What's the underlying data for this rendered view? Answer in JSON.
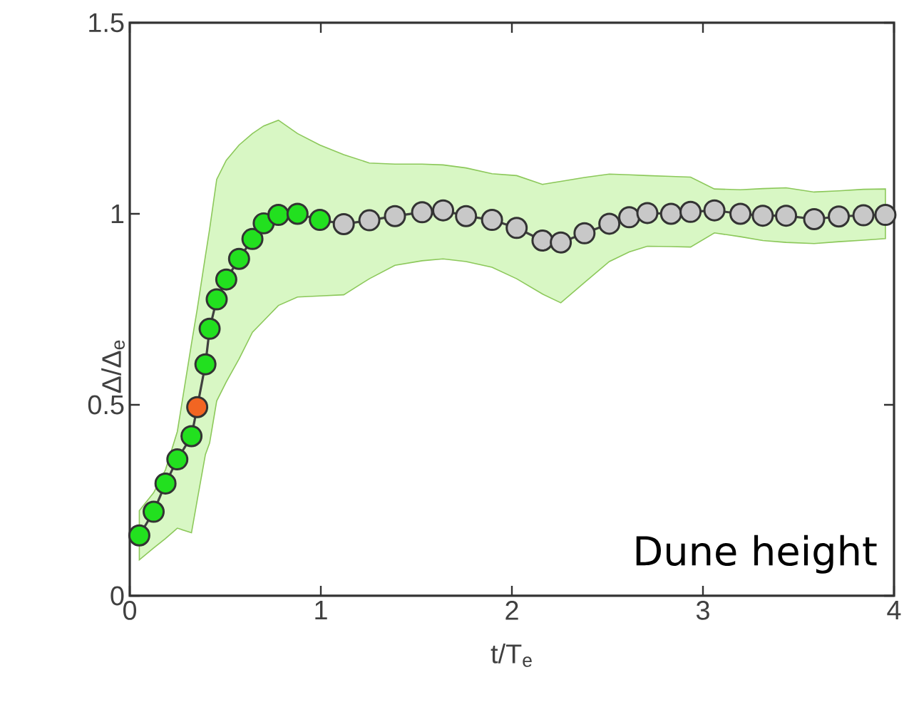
{
  "chart_data": {
    "type": "line",
    "xlabel": "t/T$_{e}$",
    "ylabel": "Δ/Δ$_{e}$",
    "xlim": [
      0,
      4
    ],
    "ylim": [
      0,
      1.5
    ],
    "xticks": [
      0,
      1,
      2,
      3,
      4
    ],
    "yticks": [
      0,
      0.5,
      1,
      1.5
    ],
    "marker": "circle",
    "line_style": "solid",
    "annotations": [
      "Dune height"
    ],
    "series": [
      {
        "color": "#404040",
        "x": [
          0.05,
          0.125,
          0.187,
          0.249,
          0.323,
          0.353,
          0.396,
          0.418,
          0.455,
          0.505,
          0.572,
          0.642,
          0.701,
          0.778,
          0.878,
          0.995,
          1.12,
          1.254,
          1.388,
          1.53,
          1.64,
          1.76,
          1.896,
          2.025,
          2.16,
          2.256,
          2.38,
          2.51,
          2.614,
          2.709,
          2.833,
          2.935,
          3.06,
          3.196,
          3.313,
          3.435,
          3.582,
          3.711,
          3.84,
          3.955
        ],
        "values": [
          0.158,
          0.22,
          0.294,
          0.357,
          0.418,
          0.494,
          0.606,
          0.699,
          0.776,
          0.828,
          0.882,
          0.934,
          0.975,
          0.997,
          1.0,
          0.984,
          0.973,
          0.983,
          0.994,
          1.004,
          1.009,
          0.994,
          0.984,
          0.963,
          0.93,
          0.925,
          0.949,
          0.974,
          0.991,
          1.002,
          1.0,
          1.005,
          1.009,
          1.0,
          0.995,
          0.995,
          0.986,
          0.993,
          0.996,
          0.997
        ],
        "upper": [
          0.223,
          0.27,
          0.33,
          0.43,
          0.66,
          0.75,
          0.89,
          0.96,
          1.09,
          1.14,
          1.18,
          1.21,
          1.23,
          1.245,
          1.21,
          1.18,
          1.155,
          1.133,
          1.13,
          1.13,
          1.128,
          1.12,
          1.105,
          1.1,
          1.077,
          1.085,
          1.095,
          1.104,
          1.102,
          1.1,
          1.098,
          1.096,
          1.065,
          1.063,
          1.066,
          1.068,
          1.057,
          1.06,
          1.064,
          1.065
        ],
        "lower": [
          0.094,
          0.125,
          0.15,
          0.177,
          0.165,
          0.25,
          0.37,
          0.4,
          0.51,
          0.56,
          0.62,
          0.69,
          0.72,
          0.76,
          0.782,
          0.785,
          0.788,
          0.83,
          0.865,
          0.877,
          0.882,
          0.875,
          0.86,
          0.83,
          0.79,
          0.767,
          0.82,
          0.875,
          0.9,
          0.915,
          0.914,
          0.913,
          0.95,
          0.94,
          0.93,
          0.925,
          0.922,
          0.927,
          0.931,
          0.935
        ],
        "colors": [
          "#22e01f",
          "#22e01f",
          "#22e01f",
          "#22e01f",
          "#22e01f",
          "#f26522",
          "#22e01f",
          "#22e01f",
          "#22e01f",
          "#22e01f",
          "#22e01f",
          "#22e01f",
          "#22e01f",
          "#22e01f",
          "#22e01f",
          "#22e01f",
          "#c8c8c8",
          "#c8c8c8",
          "#c8c8c8",
          "#c8c8c8",
          "#c8c8c8",
          "#c8c8c8",
          "#c8c8c8",
          "#c8c8c8",
          "#c8c8c8",
          "#c8c8c8",
          "#c8c8c8",
          "#c8c8c8",
          "#c8c8c8",
          "#c8c8c8",
          "#c8c8c8",
          "#c8c8c8",
          "#c8c8c8",
          "#c8c8c8",
          "#c8c8c8",
          "#c8c8c8",
          "#c8c8c8",
          "#c8c8c8",
          "#c8c8c8",
          "#c8c8c8"
        ]
      }
    ]
  }
}
